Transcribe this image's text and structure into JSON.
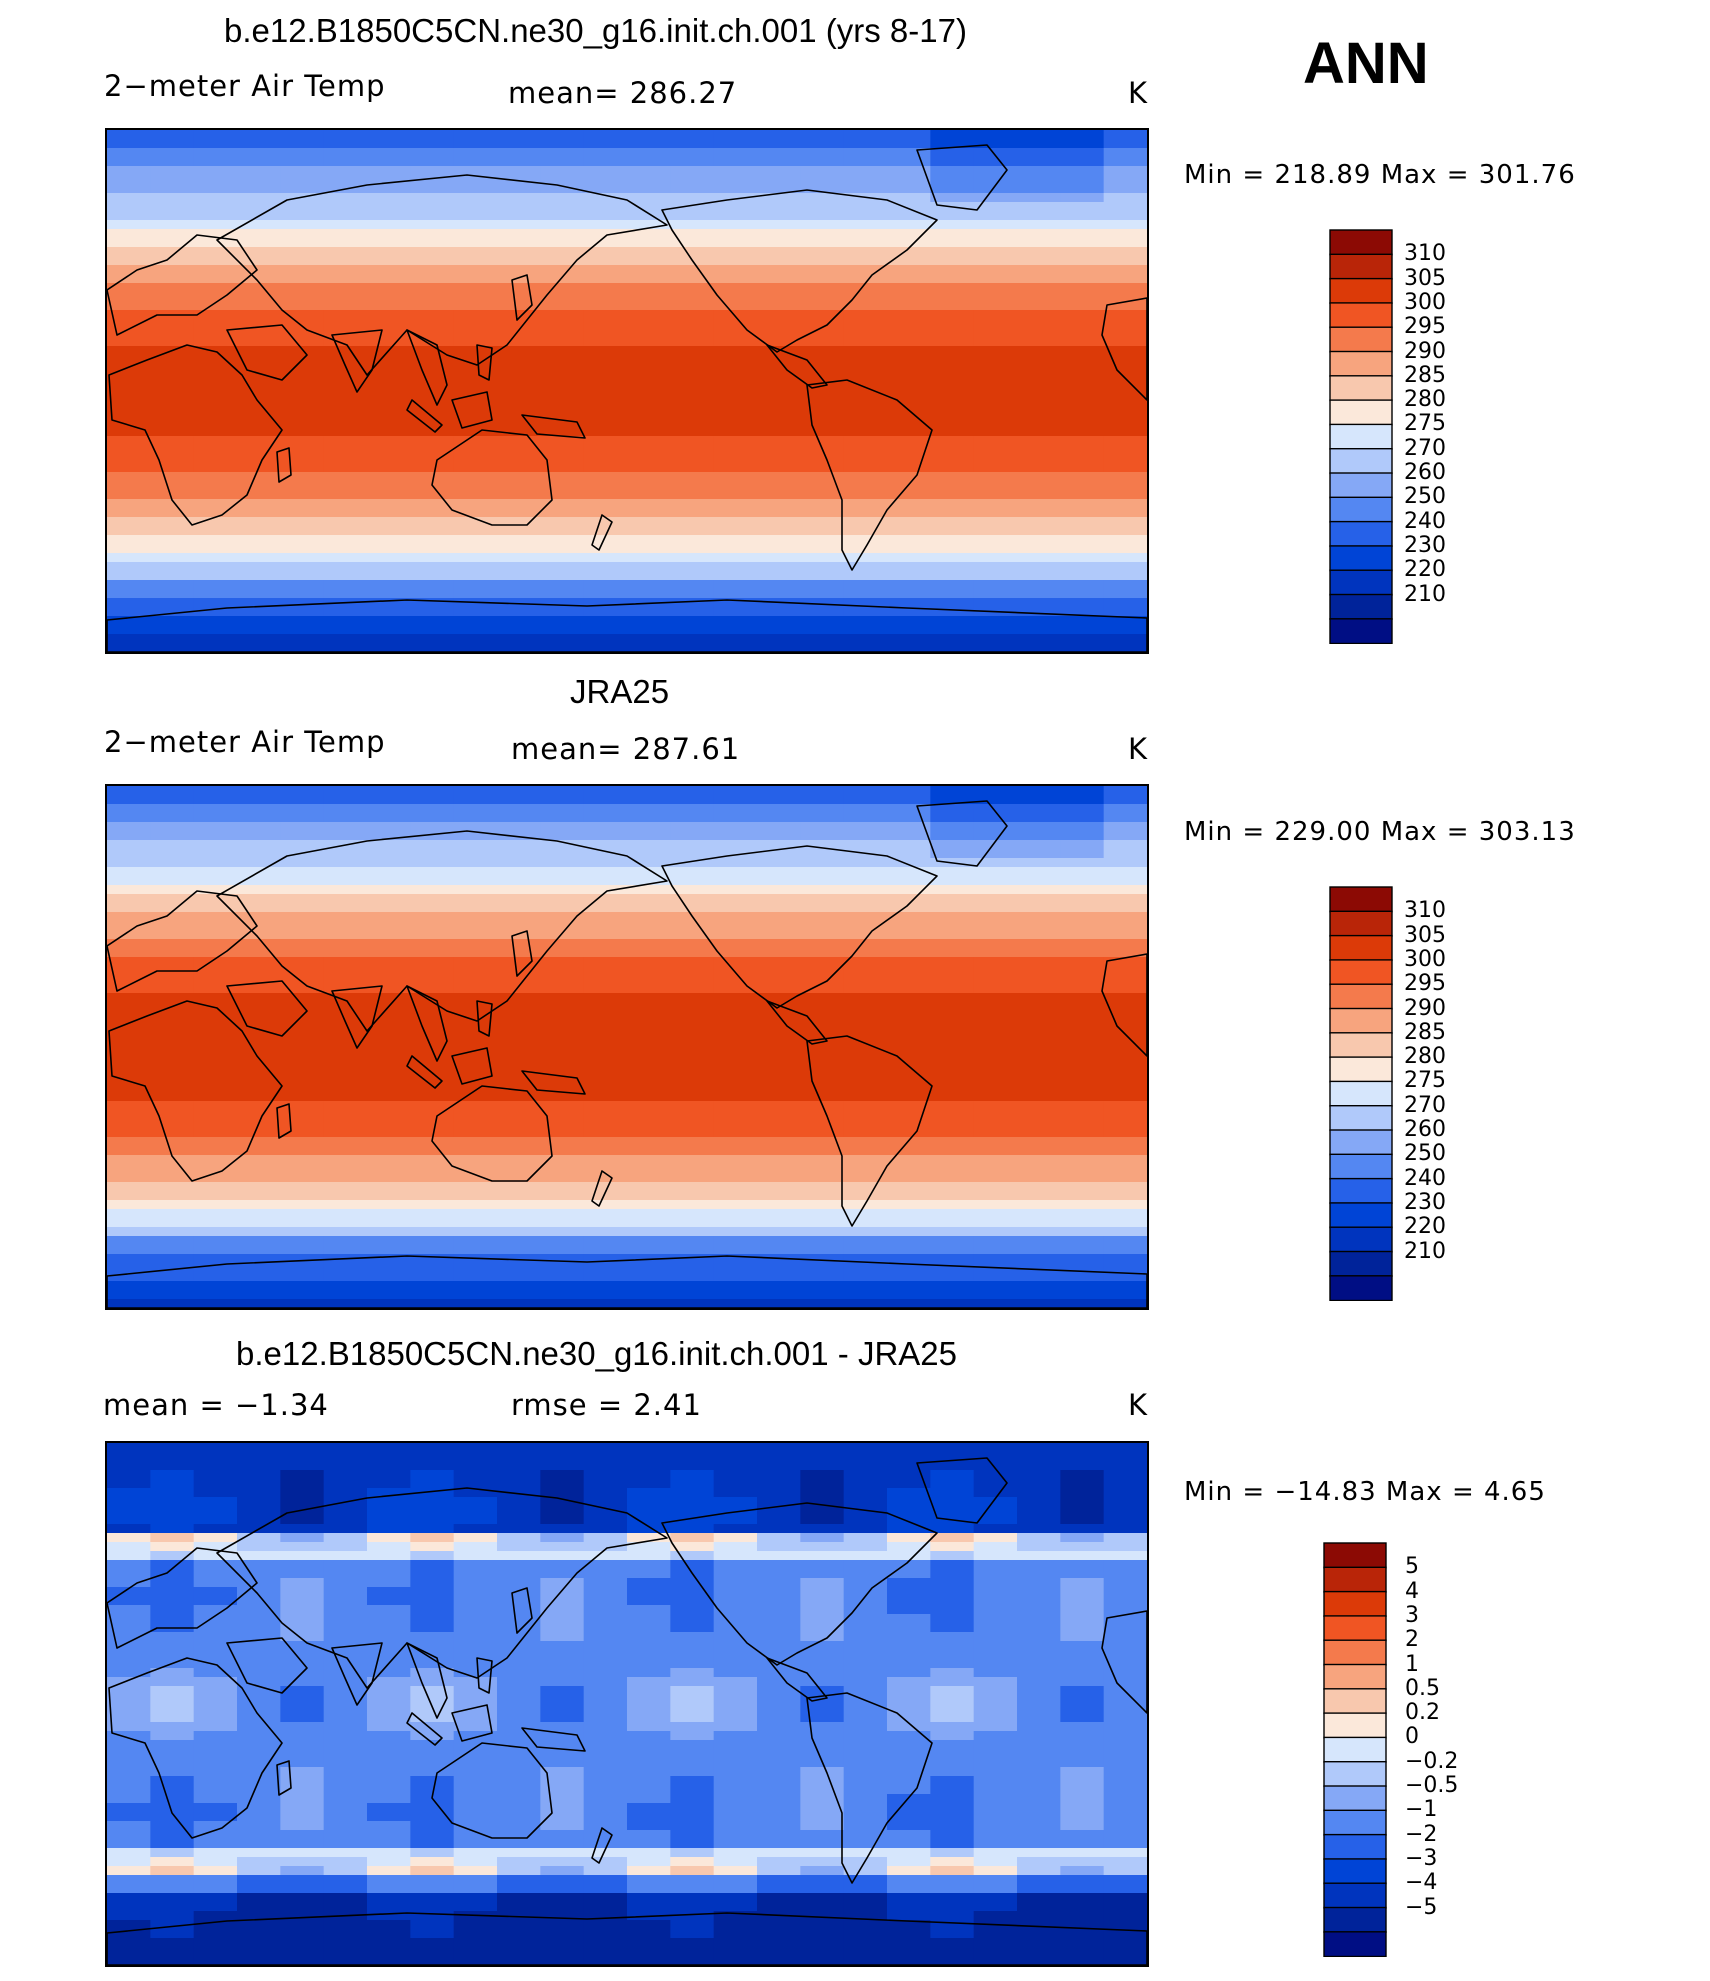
{
  "season": "ANN",
  "colors": {
    "abs_palette": [
      "#000e84",
      "#00239a",
      "#0034be",
      "#0044d6",
      "#2661e8",
      "#5487f2",
      "#85a8f6",
      "#b0c9fa",
      "#d6e6fc",
      "#fbe8da",
      "#f8c8ae",
      "#f7a47e",
      "#f47a4c",
      "#f05523",
      "#dc3a08",
      "#b92508",
      "#8c0a04"
    ],
    "diff_palette": [
      "#000e84",
      "#00239a",
      "#0034be",
      "#0044d6",
      "#2661e8",
      "#5487f2",
      "#85a8f6",
      "#b0c9fa",
      "#d6e6fc",
      "#fbe8da",
      "#f8c8ae",
      "#f7a47e",
      "#f47a4c",
      "#f05523",
      "#dc3a08",
      "#b92508",
      "#8c0a04"
    ],
    "land_outline": "#000000"
  },
  "chart_data": [
    {
      "type": "heatmap",
      "title": "b.e12.B1850C5CN.ne30_g16.init.ch.001 (yrs 8-17)",
      "variable": "2−meter Air Temp",
      "stat_text": "mean=  286.27",
      "units": "K",
      "min_max_text": "Min  =  218.89  Max  =  301.76",
      "mean": 286.27,
      "min": 218.89,
      "max": 301.76,
      "colorbar_levels": [
        "310",
        "305",
        "300",
        "295",
        "290",
        "285",
        "280",
        "275",
        "270",
        "260",
        "250",
        "240",
        "230",
        "220",
        "210"
      ]
    },
    {
      "type": "heatmap",
      "title": "JRA25",
      "variable": "2−meter Air Temp",
      "stat_text": "mean=  287.61",
      "units": "K",
      "min_max_text": "Min  =  229.00  Max  =  303.13",
      "mean": 287.61,
      "min": 229.0,
      "max": 303.13,
      "colorbar_levels": [
        "310",
        "305",
        "300",
        "295",
        "290",
        "285",
        "280",
        "275",
        "270",
        "260",
        "250",
        "240",
        "230",
        "220",
        "210"
      ]
    },
    {
      "type": "heatmap",
      "title": "b.e12.B1850C5CN.ne30_g16.init.ch.001 - JRA25",
      "stat_text": "mean  =    −1.34",
      "rmse_text": "rmse  =     2.41",
      "units": "K",
      "min_max_text": "Min  =  −14.83  Max  =     4.65",
      "mean": -1.34,
      "rmse": 2.41,
      "min": -14.83,
      "max": 4.65,
      "colorbar_levels": [
        "5",
        "4",
        "3",
        "2",
        "1",
        "0.5",
        "0.2",
        "0",
        "−0.2",
        "−0.5",
        "−1",
        "−2",
        "−3",
        "−4",
        "−5"
      ]
    }
  ]
}
